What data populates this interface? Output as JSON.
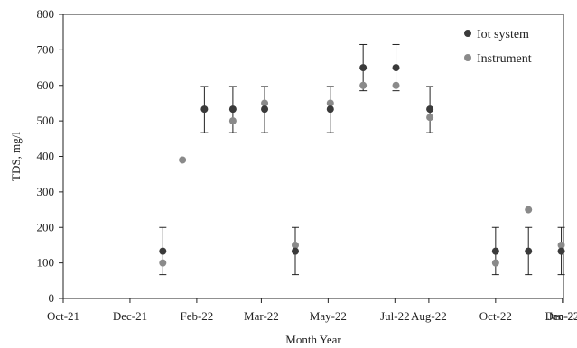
{
  "chart_data": {
    "type": "scatter",
    "title": "",
    "xlabel": "Month Year",
    "ylabel": "TDS, mg/l",
    "ylim": [
      0,
      800
    ],
    "yticks": [
      0,
      100,
      200,
      300,
      400,
      500,
      600,
      700,
      800
    ],
    "xlim": [
      "2021-10-01",
      "2023-01-01"
    ],
    "xtick_labels": [
      "Oct-21",
      "Dec-21",
      "Feb-22",
      "Mar-22",
      "May-22",
      "Jul-22",
      "Aug-22",
      "Oct-22",
      "Dec-22",
      "Jan-23"
    ],
    "xtick_dates": [
      "2021-10-01",
      "2021-12-01",
      "2022-01-31",
      "2022-03-31",
      "2022-05-31",
      "2022-07-31",
      "2022-08-31",
      "2022-10-31",
      "2022-12-31",
      "2023-01-01"
    ],
    "grid": false,
    "legend_position": "top-right",
    "series": [
      {
        "name": "Iot system",
        "color": "#3a3a3a",
        "points": [
          {
            "x": "2021-12-31",
            "y": 133,
            "err_low": 67,
            "err_high": 200
          },
          {
            "x": "2022-02-07",
            "y": 533,
            "err_low": 467,
            "err_high": 597
          },
          {
            "x": "2022-03-05",
            "y": 533,
            "err_low": 467,
            "err_high": 597
          },
          {
            "x": "2022-04-03",
            "y": 533,
            "err_low": 467,
            "err_high": 597
          },
          {
            "x": "2022-05-01",
            "y": 133,
            "err_low": 67,
            "err_high": 200
          },
          {
            "x": "2022-06-02",
            "y": 533,
            "err_low": 467,
            "err_high": 597
          },
          {
            "x": "2022-07-02",
            "y": 650,
            "err_low": 585,
            "err_high": 715
          },
          {
            "x": "2022-08-01",
            "y": 650,
            "err_low": 585,
            "err_high": 715
          },
          {
            "x": "2022-09-01",
            "y": 533,
            "err_low": 467,
            "err_high": 597
          },
          {
            "x": "2022-10-31",
            "y": 133,
            "err_low": 67,
            "err_high": 200
          },
          {
            "x": "2022-11-30",
            "y": 133,
            "err_low": 67,
            "err_high": 200
          },
          {
            "x": "2022-12-30",
            "y": 133,
            "err_low": 67,
            "err_high": 200
          }
        ]
      },
      {
        "name": "Instrument",
        "color": "#8a8a8a",
        "points": [
          {
            "x": "2021-12-31",
            "y": 100
          },
          {
            "x": "2022-01-18",
            "y": 390
          },
          {
            "x": "2022-03-05",
            "y": 500
          },
          {
            "x": "2022-04-03",
            "y": 550
          },
          {
            "x": "2022-05-01",
            "y": 150
          },
          {
            "x": "2022-06-02",
            "y": 550
          },
          {
            "x": "2022-07-02",
            "y": 600
          },
          {
            "x": "2022-08-01",
            "y": 600
          },
          {
            "x": "2022-09-01",
            "y": 510
          },
          {
            "x": "2022-10-31",
            "y": 100
          },
          {
            "x": "2022-11-30",
            "y": 250
          },
          {
            "x": "2022-12-30",
            "y": 150
          }
        ]
      }
    ]
  }
}
